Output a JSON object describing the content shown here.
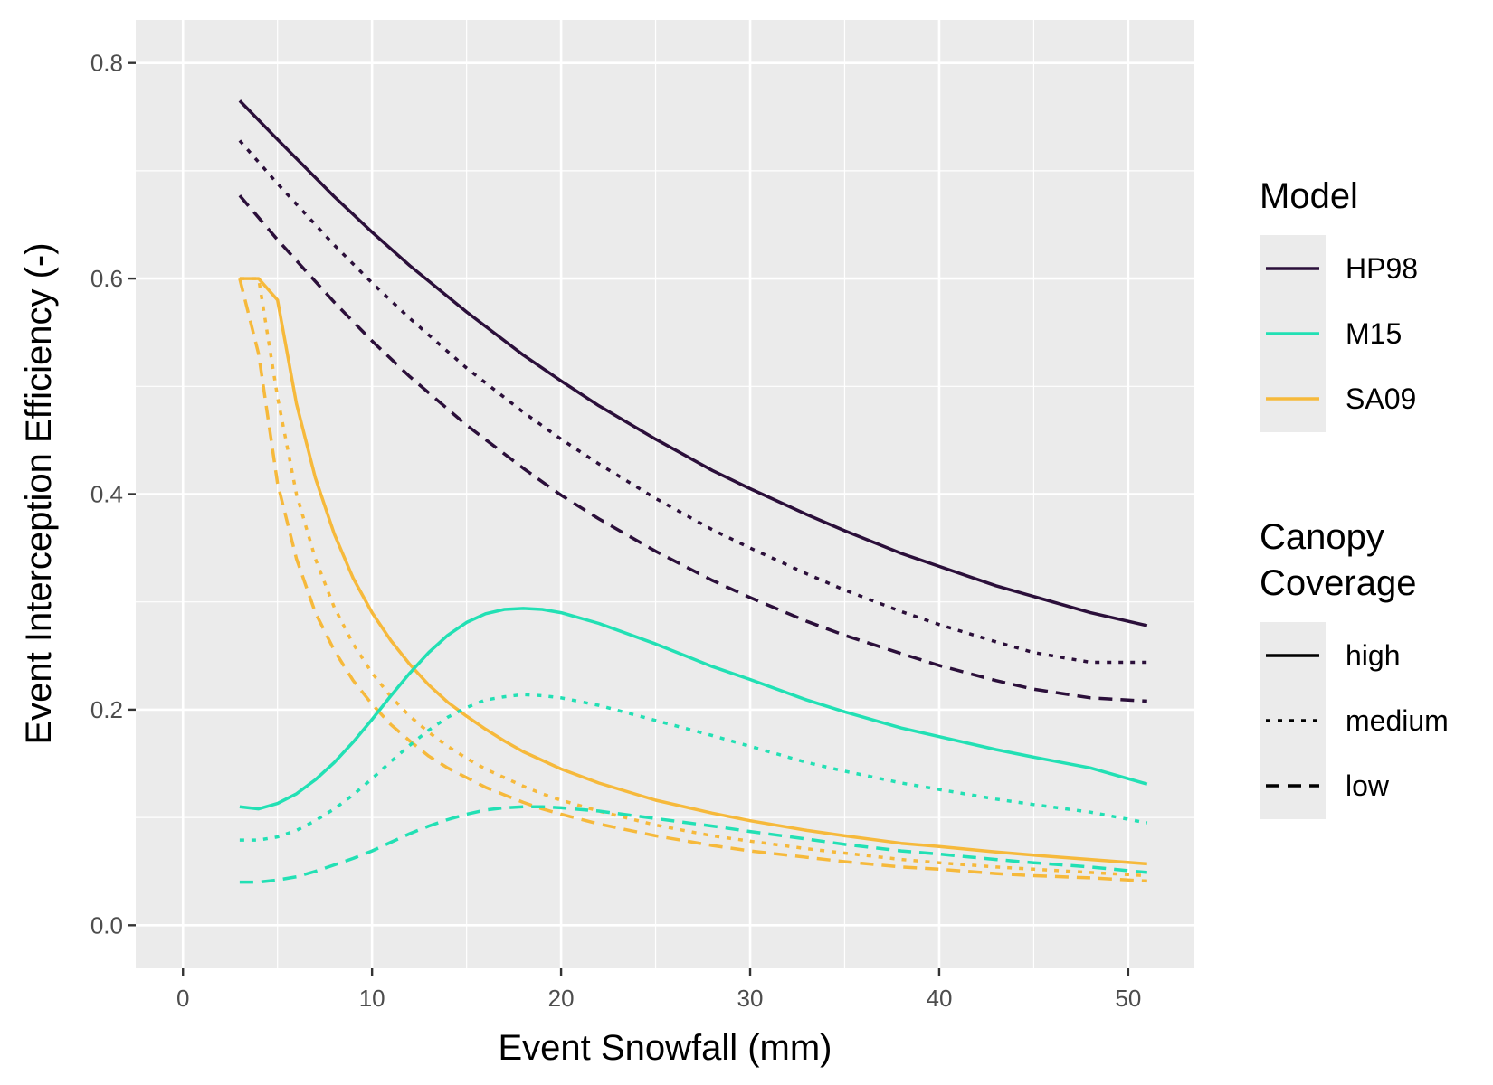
{
  "chart_data": {
    "type": "line",
    "xlabel": "Event Snowfall (mm)",
    "ylabel": "Event Interception Efficiency (-)",
    "xlim": [
      -2.5,
      53.5
    ],
    "ylim": [
      -0.04,
      0.84
    ],
    "xticks": [
      0,
      10,
      20,
      30,
      40,
      50
    ],
    "yticks": [
      0.0,
      0.2,
      0.4,
      0.6,
      0.8
    ],
    "x_tick_labels": [
      "0",
      "10",
      "20",
      "30",
      "40",
      "50"
    ],
    "y_tick_labels": [
      "0.0",
      "0.2",
      "0.4",
      "0.6",
      "0.8"
    ],
    "grid": true,
    "legend_position": "right",
    "legend_groups": [
      {
        "title": "Model",
        "entries": [
          {
            "label": "HP98",
            "color": "#2b0f3a"
          },
          {
            "label": "M15",
            "color": "#22e0b4"
          },
          {
            "label": "SA09",
            "color": "#f6b93b"
          }
        ]
      },
      {
        "title": "Canopy Coverage",
        "title_lines": [
          "Canopy",
          "Coverage"
        ],
        "entries": [
          {
            "label": "high",
            "dash": "solid"
          },
          {
            "label": "medium",
            "dash": "dotted"
          },
          {
            "label": "low",
            "dash": "dashed"
          }
        ]
      }
    ],
    "colors": {
      "HP98": "#2b0f3a",
      "M15": "#22e0b4",
      "SA09": "#f6b93b"
    },
    "series": [
      {
        "model": "HP98",
        "coverage": "high",
        "x": [
          3,
          5,
          8,
          10,
          12,
          15,
          18,
          20,
          22,
          25,
          28,
          30,
          33,
          35,
          38,
          40,
          43,
          45,
          48,
          51
        ],
        "y": [
          0.765,
          0.729,
          0.676,
          0.643,
          0.612,
          0.569,
          0.529,
          0.505,
          0.482,
          0.451,
          0.422,
          0.405,
          0.381,
          0.366,
          0.345,
          0.333,
          0.315,
          0.305,
          0.29,
          0.278
        ]
      },
      {
        "model": "HP98",
        "coverage": "medium",
        "x": [
          3,
          5,
          8,
          10,
          12,
          15,
          18,
          20,
          22,
          25,
          28,
          30,
          33,
          35,
          38,
          40,
          43,
          45,
          48,
          51
        ],
        "y": [
          0.728,
          0.688,
          0.631,
          0.596,
          0.563,
          0.517,
          0.476,
          0.451,
          0.428,
          0.396,
          0.367,
          0.35,
          0.326,
          0.311,
          0.291,
          0.279,
          0.263,
          0.253,
          0.244,
          0.244
        ]
      },
      {
        "model": "HP98",
        "coverage": "low",
        "x": [
          3,
          5,
          8,
          10,
          12,
          15,
          18,
          20,
          22,
          25,
          28,
          30,
          33,
          35,
          38,
          40,
          43,
          45,
          48,
          51
        ],
        "y": [
          0.677,
          0.636,
          0.578,
          0.542,
          0.509,
          0.464,
          0.424,
          0.399,
          0.377,
          0.347,
          0.32,
          0.304,
          0.282,
          0.269,
          0.252,
          0.241,
          0.227,
          0.219,
          0.211,
          0.208
        ]
      },
      {
        "model": "M15",
        "coverage": "high",
        "x": [
          3,
          4,
          5,
          6,
          7,
          8,
          9,
          10,
          11,
          12,
          13,
          14,
          15,
          16,
          17,
          18,
          19,
          20,
          22,
          25,
          28,
          30,
          33,
          35,
          38,
          40,
          43,
          45,
          48,
          51
        ],
        "y": [
          0.11,
          0.108,
          0.113,
          0.122,
          0.135,
          0.151,
          0.17,
          0.191,
          0.213,
          0.234,
          0.253,
          0.269,
          0.281,
          0.289,
          0.293,
          0.294,
          0.293,
          0.29,
          0.28,
          0.261,
          0.24,
          0.228,
          0.209,
          0.198,
          0.183,
          0.175,
          0.163,
          0.156,
          0.146,
          0.131
        ]
      },
      {
        "model": "M15",
        "coverage": "medium",
        "x": [
          3,
          4,
          5,
          6,
          7,
          8,
          9,
          10,
          11,
          12,
          13,
          14,
          15,
          16,
          17,
          18,
          19,
          20,
          22,
          25,
          28,
          30,
          33,
          35,
          38,
          40,
          43,
          45,
          48,
          51
        ],
        "y": [
          0.079,
          0.079,
          0.082,
          0.088,
          0.097,
          0.108,
          0.121,
          0.136,
          0.152,
          0.167,
          0.181,
          0.193,
          0.202,
          0.209,
          0.212,
          0.214,
          0.213,
          0.211,
          0.204,
          0.19,
          0.176,
          0.166,
          0.151,
          0.143,
          0.132,
          0.126,
          0.117,
          0.112,
          0.105,
          0.095
        ]
      },
      {
        "model": "M15",
        "coverage": "low",
        "x": [
          3,
          4,
          5,
          6,
          7,
          8,
          9,
          10,
          11,
          12,
          13,
          14,
          15,
          16,
          17,
          18,
          19,
          20,
          22,
          25,
          28,
          30,
          33,
          35,
          38,
          40,
          43,
          45,
          48,
          51
        ],
        "y": [
          0.04,
          0.04,
          0.042,
          0.045,
          0.05,
          0.056,
          0.062,
          0.069,
          0.077,
          0.085,
          0.092,
          0.098,
          0.103,
          0.107,
          0.109,
          0.11,
          0.11,
          0.109,
          0.106,
          0.099,
          0.092,
          0.087,
          0.08,
          0.075,
          0.069,
          0.066,
          0.061,
          0.058,
          0.054,
          0.049
        ]
      },
      {
        "model": "SA09",
        "coverage": "high",
        "x": [
          3,
          4,
          5,
          6,
          7,
          8,
          9,
          10,
          11,
          12,
          13,
          14,
          15,
          16,
          17,
          18,
          19,
          20,
          22,
          25,
          28,
          30,
          33,
          35,
          38,
          40,
          43,
          45,
          48,
          51
        ],
        "y": [
          0.6,
          0.6,
          0.58,
          0.484,
          0.415,
          0.363,
          0.322,
          0.29,
          0.264,
          0.242,
          0.223,
          0.207,
          0.194,
          0.182,
          0.171,
          0.161,
          0.153,
          0.145,
          0.132,
          0.116,
          0.104,
          0.097,
          0.088,
          0.083,
          0.076,
          0.073,
          0.068,
          0.065,
          0.061,
          0.057
        ]
      },
      {
        "model": "SA09",
        "coverage": "medium",
        "x": [
          3,
          4,
          5,
          6,
          7,
          8,
          9,
          10,
          11,
          12,
          13,
          14,
          15,
          16,
          17,
          18,
          19,
          20,
          22,
          25,
          28,
          30,
          33,
          35,
          38,
          40,
          43,
          45,
          48,
          51
        ],
        "y": [
          0.6,
          0.6,
          0.49,
          0.4,
          0.34,
          0.295,
          0.261,
          0.234,
          0.212,
          0.194,
          0.179,
          0.166,
          0.155,
          0.145,
          0.137,
          0.129,
          0.122,
          0.116,
          0.106,
          0.093,
          0.083,
          0.078,
          0.071,
          0.067,
          0.061,
          0.058,
          0.054,
          0.052,
          0.049,
          0.046
        ]
      },
      {
        "model": "SA09",
        "coverage": "low",
        "x": [
          3,
          4,
          5,
          6,
          7,
          8,
          9,
          10,
          11,
          12,
          13,
          14,
          15,
          16,
          17,
          18,
          19,
          20,
          22,
          25,
          28,
          30,
          33,
          35,
          38,
          40,
          43,
          45,
          48,
          51
        ],
        "y": [
          0.6,
          0.53,
          0.41,
          0.34,
          0.29,
          0.255,
          0.227,
          0.205,
          0.186,
          0.171,
          0.157,
          0.146,
          0.137,
          0.128,
          0.121,
          0.114,
          0.108,
          0.103,
          0.094,
          0.083,
          0.074,
          0.069,
          0.063,
          0.059,
          0.054,
          0.052,
          0.048,
          0.046,
          0.044,
          0.041
        ]
      }
    ]
  }
}
